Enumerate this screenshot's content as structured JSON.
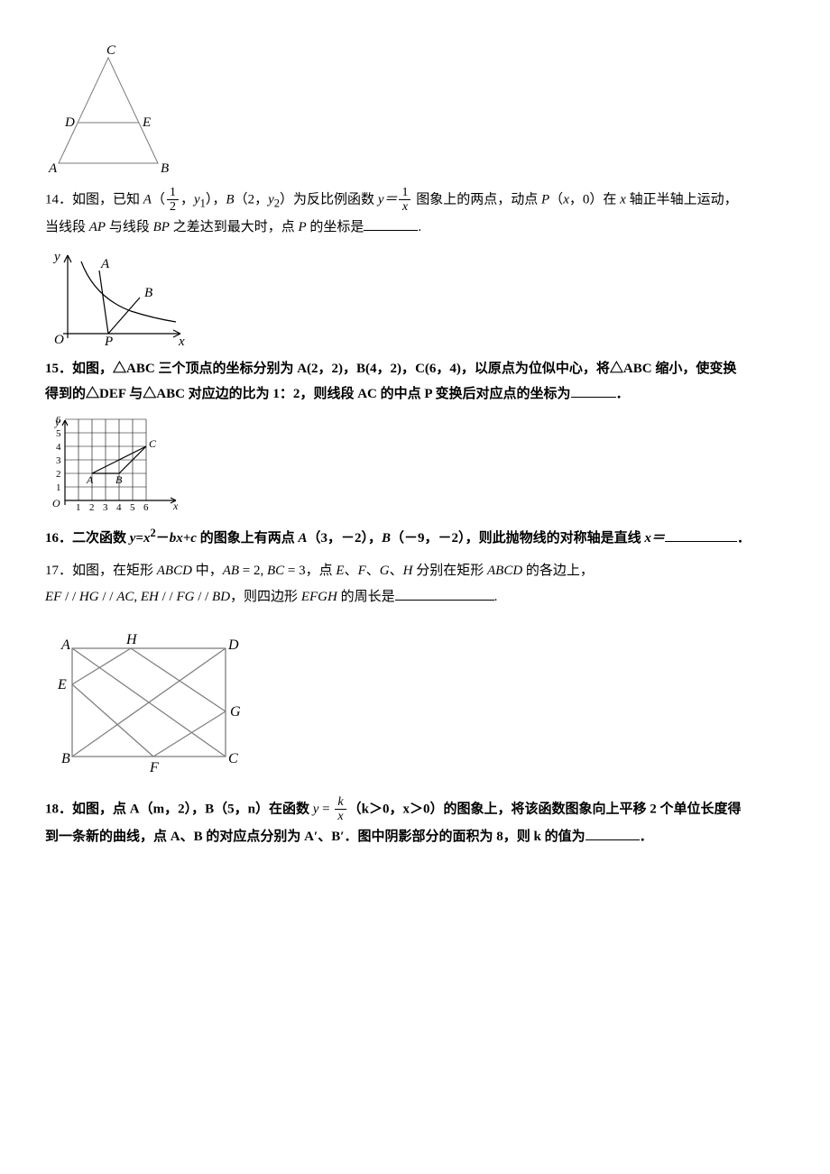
{
  "fig13": {
    "labels": {
      "A": "A",
      "B": "B",
      "C": "C",
      "D": "D",
      "E": "E"
    },
    "stroke": "#7a7a7a",
    "label_color": "#000000",
    "font_size": 15,
    "font_style": "italic"
  },
  "q14": {
    "num": "14",
    "t1": "．如图，已知 ",
    "A": "A",
    "lp1": "（",
    "frac1": {
      "num": "1",
      "den": "2"
    },
    "comma1": "，",
    "y1": "y",
    "y1sub": "1",
    "rp1": "），",
    "B": "B",
    "lp2": "（",
    "two": "2",
    "comma2": "，",
    "y2": "y",
    "y2sub": "2",
    "rp2": "）",
    "t2": "为反比例函数 ",
    "yeq": "y＝",
    "frac2": {
      "num": "1",
      "den": "x"
    },
    "t3": " 图象上的两点，动点 ",
    "P": "P",
    "lp3": "（",
    "x": "x",
    "comma3": "，",
    "zero": "0",
    "rp3": "）",
    "t4": "在 ",
    "xaxis": "x",
    "t5": " 轴正半轴上运动，",
    "line2a": "当线段 ",
    "AP": "AP",
    "line2b": " 与线段 ",
    "BP": "BP",
    "line2c": " 之差达到最大时，点 ",
    "P2": "P",
    "line2d": " 的坐标是",
    "period": "."
  },
  "fig14": {
    "labels": {
      "y": "y",
      "x": "x",
      "O": "O",
      "A": "A",
      "B": "B",
      "P": "P"
    },
    "stroke": "#000000",
    "font_size": 15
  },
  "q15": {
    "num": "15",
    "t1": "．如图，△",
    "ABC": "ABC",
    "t2": " 三个顶点的坐标分别为 ",
    "A": "A(2，2)",
    "c1": "，",
    "B": "B(4，2)",
    "c2": "，",
    "C": "C(6，4)",
    "t3": "，以原点为位似中心，将△",
    "ABC2": "ABC",
    "t4": " 缩小，使变换",
    "line2a": "得到的△",
    "DEF": "DEF",
    "line2b": " 与△",
    "ABC3": "ABC",
    "line2c": " 对应边的比为 ",
    "ratio": "1：2",
    "line2d": "，则线段 ",
    "AC": "AC",
    "line2e": " 的中点 ",
    "P": "P",
    "line2f": " 变换后对应点的坐标为",
    "period": "．"
  },
  "fig15": {
    "labels": {
      "y": "y",
      "x": "x",
      "O": "O",
      "A": "A",
      "B": "B",
      "C": "C"
    },
    "xticks": [
      "1",
      "2",
      "3",
      "4",
      "5",
      "6"
    ],
    "yticks": [
      "1",
      "2",
      "3",
      "4",
      "5",
      "6"
    ],
    "stroke": "#000000",
    "font_size": 12
  },
  "q16": {
    "num": "16",
    "t1": "．二次函数 ",
    "eq": "y=x",
    "sq": "2",
    "minus": "－",
    "bx": "bx+c",
    "t2": " 的图象上有两点 ",
    "A": "A",
    "Ap": "（3，－2）",
    "c1": "，",
    "B": "B",
    "Bp": "（－9，－2）",
    "t3": "，则此抛物线的对称轴是直线 ",
    "xeq": "x＝",
    "period": "．"
  },
  "q17": {
    "num": "17",
    "t1": "．如图，在矩形 ",
    "ABCD": "ABCD",
    "t2": " 中，",
    "AB": "AB",
    "eq1": " = 2, ",
    "BC": "BC",
    "eq2": " = 3",
    "t3": "，点 ",
    "E": "E",
    "s1": "、",
    "F": "F",
    "s2": "、",
    "G": "G",
    "s3": "、",
    "H": "H",
    "t4": " 分别在矩形 ",
    "ABCD2": "ABCD",
    "t5": " 的各边上，",
    "line2a": "EF",
    "p1": " / / ",
    "HG": "HG",
    "p2": " / / ",
    "AC": "AC",
    "c1": ", ",
    "EH": "EH",
    "p3": " / / ",
    "FG": "FG",
    "p4": " / / ",
    "BD": "BD",
    "line2b": "，则四边形 ",
    "EFGH": "EFGH",
    "line2c": " 的周长是",
    "period": "."
  },
  "fig17": {
    "labels": {
      "A": "A",
      "B": "B",
      "C": "C",
      "D": "D",
      "E": "E",
      "F": "F",
      "G": "G",
      "H": "H"
    },
    "stroke": "#808080",
    "font_size": 15,
    "font_style": "italic"
  },
  "q18": {
    "num": "18",
    "t1": "．如图，点 ",
    "A": "A",
    "Ap": "（m，2）",
    "c1": "，",
    "B": "B",
    "Bp": "（5，n）",
    "t2": "在函数 ",
    "yeq": "y",
    "eq": " = ",
    "frac": {
      "num": "k",
      "den": "x"
    },
    "cond": "（k＞0，x＞0）",
    "t3": "的图象上，将该函数图象向上平移 ",
    "two": "2",
    "t4": " 个单位长度得",
    "line2a": "到一条新的曲线，点 ",
    "A2": "A",
    "s1": "、",
    "B2": "B",
    "line2b": " 的对应点分别为 ",
    "Ap2": "A′",
    "s2": "、",
    "Bp2": "B′",
    "line2c": "．图中阴影部分的面积为 ",
    "eight": "8",
    "line2d": "，则 ",
    "k": "k",
    "line2e": " 的值为",
    "period": "．"
  }
}
